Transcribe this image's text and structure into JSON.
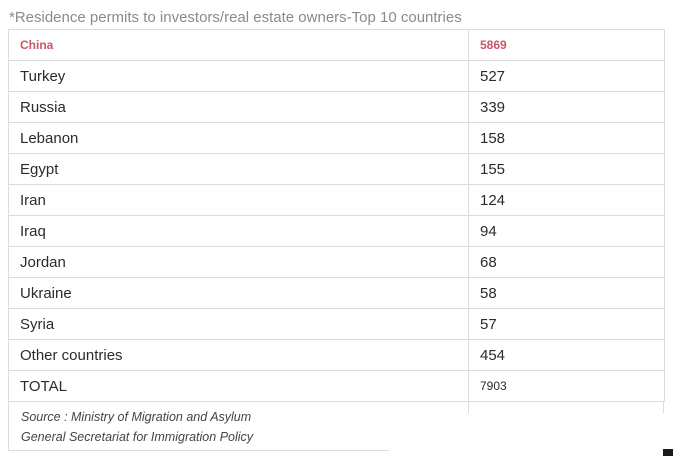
{
  "caption": "*Residence permits to investors/real estate owners-Top 10 countries",
  "table": {
    "header": {
      "country": "China",
      "value": "5869"
    },
    "rows": [
      {
        "country": "Turkey",
        "value": "527"
      },
      {
        "country": "Russia",
        "value": "339"
      },
      {
        "country": "Lebanon",
        "value": "158"
      },
      {
        "country": "Egypt",
        "value": "155"
      },
      {
        "country": "Iran",
        "value": "124"
      },
      {
        "country": "Iraq",
        "value": "94"
      },
      {
        "country": "Jordan",
        "value": "68"
      },
      {
        "country": "Ukraine",
        "value": "58"
      },
      {
        "country": "Syria",
        "value": "57"
      },
      {
        "country": "Other countries",
        "value": "454"
      },
      {
        "country": "TOTAL",
        "value": "7903"
      }
    ]
  },
  "source": {
    "line1": "Source : Ministry of Migration and Asylum",
    "line2": "General Secretariat for Immigration Policy"
  },
  "colors": {
    "header_text": "#c8566b",
    "border": "#dcdcdc",
    "caption_text": "#8a8a8a"
  }
}
